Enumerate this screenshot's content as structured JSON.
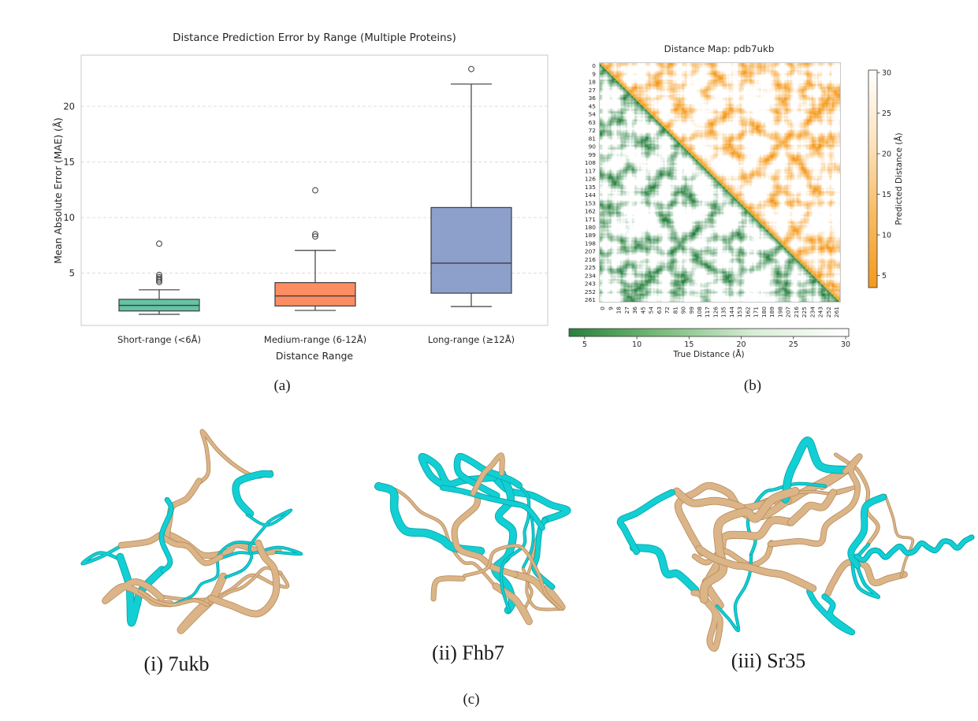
{
  "figure": {
    "captions": {
      "a": "(a)",
      "b": "(b)",
      "c": "(c)"
    }
  },
  "chart_data": [
    {
      "type": "boxplot",
      "title": "Distance Prediction Error by Range (Multiple Proteins)",
      "xlabel": "Distance Range",
      "ylabel": "Mean Absolute Error (MAE) (Å)",
      "yticks": [
        5,
        10,
        15,
        20
      ],
      "ylim": [
        0.3,
        24.6
      ],
      "grid": "horizontal dashed",
      "legend_position": "none",
      "categories": [
        "Short-range (<6Å)",
        "Medium-range (6-12Å)",
        "Long-range (≥12Å)"
      ],
      "series": [
        {
          "label": "Short-range (<6Å)",
          "color": "#66c2a5",
          "whislo": 1.3,
          "q1": 1.6,
          "med": 2.1,
          "q3": 2.65,
          "whishi": 3.5,
          "fliers": [
            4.2,
            4.35,
            4.5,
            4.65,
            4.85,
            7.65
          ]
        },
        {
          "label": "Medium-range (6-12Å)",
          "color": "#fc8d62",
          "whislo": 1.65,
          "q1": 2.05,
          "med": 2.95,
          "q3": 4.15,
          "whishi": 7.05,
          "fliers": [
            8.3,
            8.5,
            12.45
          ]
        },
        {
          "label": "Long-range (≥12Å)",
          "color": "#8da0cb",
          "whislo": 2.0,
          "q1": 3.2,
          "med": 5.9,
          "q3": 10.9,
          "whishi": 22.0,
          "fliers": [
            23.35
          ]
        }
      ]
    },
    {
      "type": "heatmap",
      "title": "Distance Map: pdb7ukb",
      "n_residues": 262,
      "residue_ticks": [
        0,
        9,
        18,
        27,
        36,
        45,
        54,
        63,
        72,
        81,
        90,
        99,
        108,
        117,
        126,
        135,
        144,
        153,
        162,
        171,
        180,
        189,
        198,
        207,
        216,
        225,
        234,
        243,
        252,
        261
      ],
      "lower_triangle": "True distance (green colormap, dark = near)",
      "upper_triangle": "Predicted distance (orange colormap, dark = near)",
      "colorbar_bottom_label": "True Distance (Å)",
      "colorbar_right_label": "Predicted Distance (Å)",
      "colorbar_ticks": [
        5,
        10,
        15,
        20,
        25,
        30
      ],
      "value_min": 3.5,
      "value_max": 30.3
    }
  ],
  "panel_c": {
    "items": [
      {
        "id": "7ukb",
        "label": "(i) 7ukb"
      },
      {
        "id": "Fhb7",
        "label": "(ii) Fhb7"
      },
      {
        "id": "Sr35",
        "label": "(iii) Sr35"
      }
    ]
  },
  "colors": {
    "box_edge": "#3c3c3c",
    "grid": "#dcdcdc",
    "spine": "#c9c9c9",
    "heat_green_dark": "#1c7a35",
    "heat_orange_dark": "#f5920a",
    "diag_yellow": "#ffd24a",
    "cbar_green": [
      "#27813d",
      "#7abd7a",
      "#d9eed6",
      "#ffffff"
    ],
    "cbar_orange": [
      "#f5991d",
      "#f8bb62",
      "#fce3bd",
      "#ffffff"
    ],
    "ribbon_tan": "#dbb487",
    "ribbon_tan_dark": "#b68c5c",
    "ribbon_cyan": "#12cfd4",
    "ribbon_cyan_dark": "#00a3a8"
  }
}
